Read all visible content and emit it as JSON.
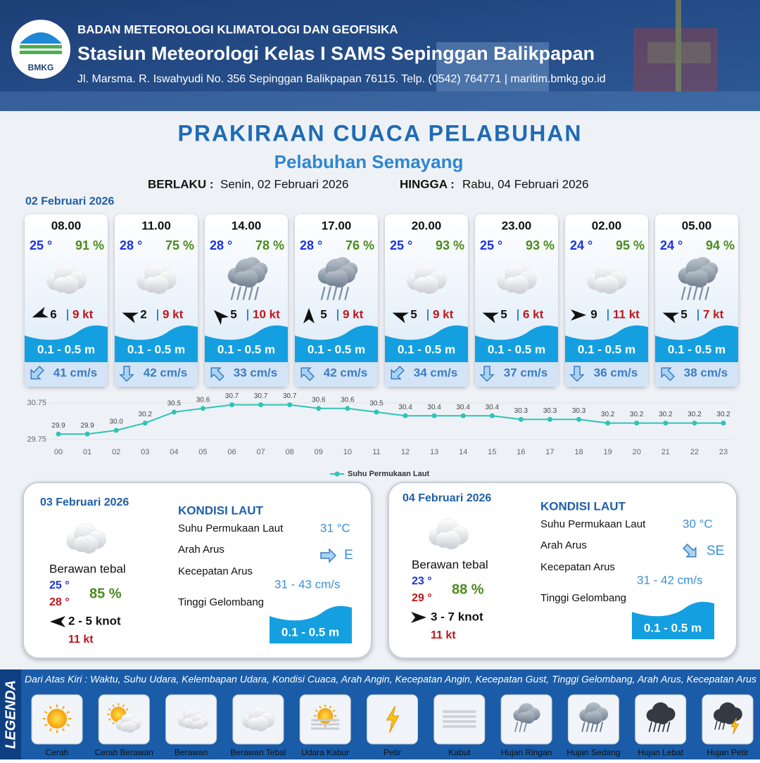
{
  "header": {
    "logo": "BMKG",
    "agency": "BADAN METEOROLOGI KLIMATOLOGI DAN GEOFISIKA",
    "station": "Stasiun Meteorologi Kelas I SAMS Sepinggan Balikpapan",
    "address": "Jl. Marsma. R. Iswahyudi No. 356 Sepinggan Balikpapan 76115. Telp. (0542) 764771 | maritim.bmkg.go.id"
  },
  "title": "PRAKIRAAN CUACA PELABUHAN",
  "port": "Pelabuhan Semayang",
  "validity": {
    "from_label": "BERLAKU :",
    "from": "Senin, 02 Februari 2026",
    "to_label": "HINGGA :",
    "to": "Rabu, 04 Februari 2026"
  },
  "today": {
    "date": "02 Februari 2026",
    "slots": [
      {
        "time": "08.00",
        "temp": "25 °",
        "humidity": "91 %",
        "wind": "6",
        "gust": "9 kt",
        "wave": "0.1 - 0.5 m",
        "current": "41 cm/s"
      },
      {
        "time": "11.00",
        "temp": "28 °",
        "humidity": "75 %",
        "wind": "2",
        "gust": "9 kt",
        "wave": "0.1 - 0.5 m",
        "current": "42 cm/s"
      },
      {
        "time": "14.00",
        "temp": "28 °",
        "humidity": "78 %",
        "wind": "5",
        "gust": "10 kt",
        "wave": "0.1 - 0.5 m",
        "current": "33 cm/s"
      },
      {
        "time": "17.00",
        "temp": "28 °",
        "humidity": "76 %",
        "wind": "5",
        "gust": "9 kt",
        "wave": "0.1 - 0.5 m",
        "current": "42 cm/s"
      },
      {
        "time": "20.00",
        "temp": "25 °",
        "humidity": "93 %",
        "wind": "5",
        "gust": "9 kt",
        "wave": "0.1 - 0.5 m",
        "current": "34 cm/s"
      },
      {
        "time": "23.00",
        "temp": "25 °",
        "humidity": "93 %",
        "wind": "5",
        "gust": "6 kt",
        "wave": "0.1 - 0.5 m",
        "current": "37 cm/s"
      },
      {
        "time": "02.00",
        "temp": "24 °",
        "humidity": "95 %",
        "wind": "9",
        "gust": "11 kt",
        "wave": "0.1 - 0.5 m",
        "current": "36 cm/s"
      },
      {
        "time": "05.00",
        "temp": "24 °",
        "humidity": "94 %",
        "wind": "5",
        "gust": "7 kt",
        "wave": "0.1 - 0.5 m",
        "current": "38 cm/s"
      }
    ]
  },
  "chart_data": {
    "type": "line",
    "categories": [
      "00",
      "01",
      "02",
      "03",
      "04",
      "05",
      "06",
      "07",
      "08",
      "09",
      "10",
      "11",
      "12",
      "13",
      "14",
      "15",
      "16",
      "17",
      "18",
      "19",
      "20",
      "21",
      "22",
      "23"
    ],
    "series": [
      {
        "name": "Suhu Permukaan Laut",
        "color": "#2ec4b6",
        "values": [
          29.9,
          29.9,
          30.0,
          30.2,
          30.5,
          30.6,
          30.7,
          30.7,
          30.7,
          30.6,
          30.6,
          30.5,
          30.4,
          30.4,
          30.4,
          30.4,
          30.3,
          30.3,
          30.3,
          30.2,
          30.2,
          30.2,
          30.2,
          30.2
        ],
        "value_labels": [
          "29.9",
          "29.9",
          "30.0",
          "30.2",
          "30.5",
          "30.6",
          "30.7",
          "30.7",
          "30.7",
          "30.6",
          "30.6",
          "30.5",
          "30.4",
          "30.4",
          "30.4",
          "30.4",
          "30.3",
          "30.3",
          "30.3",
          "30.2",
          "30.2",
          "30.2",
          "30.2",
          "30.2"
        ]
      }
    ],
    "ylim": [
      29.75,
      30.75
    ],
    "yticks": [
      29.75,
      30.75
    ],
    "grid": true
  },
  "days": [
    {
      "date": "03 Februari 2026",
      "weather": "Berawan tebal",
      "temp_min": "25 °",
      "temp_max": "28 °",
      "humidity": "85 %",
      "wind": "2 - 5 knot",
      "gust": "11 kt",
      "sea": {
        "heading": "KONDISI LAUT",
        "sst_label": "Suhu Permukaan Laut",
        "sst": "31 °C",
        "current_dir_label": "Arah Arus",
        "current_dir": "E",
        "current_speed_label": "Kecepatan Arus",
        "current_speed": "31 - 43 cm/s",
        "wave_label": "Tinggi Gelombang",
        "wave": "0.1 - 0.5 m"
      }
    },
    {
      "date": "04 Februari 2026",
      "weather": "Berawan tebal",
      "temp_min": "23 °",
      "temp_max": "29 °",
      "humidity": "88 %",
      "wind": "3 - 7 knot",
      "gust": "11 kt",
      "sea": {
        "heading": "KONDISI LAUT",
        "sst_label": "Suhu Permukaan Laut",
        "sst": "30 °C",
        "current_dir_label": "Arah Arus",
        "current_dir": "SE",
        "current_speed_label": "Kecepatan Arus",
        "current_speed": "31 - 42 cm/s",
        "wave_label": "Tinggi Gelombang",
        "wave": "0.1 - 0.5 m"
      }
    }
  ],
  "legend": {
    "title": "LEGENDA",
    "description": "Dari Atas Kiri : Waktu, Suhu Udara, Kelembapan Udara, Kondisi Cuaca, Arah Angin, Kecepatan Angin, Kecepatan Gust, Tinggi Gelombang, Arah Arus, Kecepatan Arus",
    "items": [
      "Cerah",
      "Cerah Berawan",
      "Berawan",
      "Berawan Tebal",
      "Udara Kabur",
      "Petir",
      "Kabut",
      "Hujan Ringan",
      "Hujan Sedang",
      "Hujan Lebat",
      "Hujan Petir"
    ]
  }
}
